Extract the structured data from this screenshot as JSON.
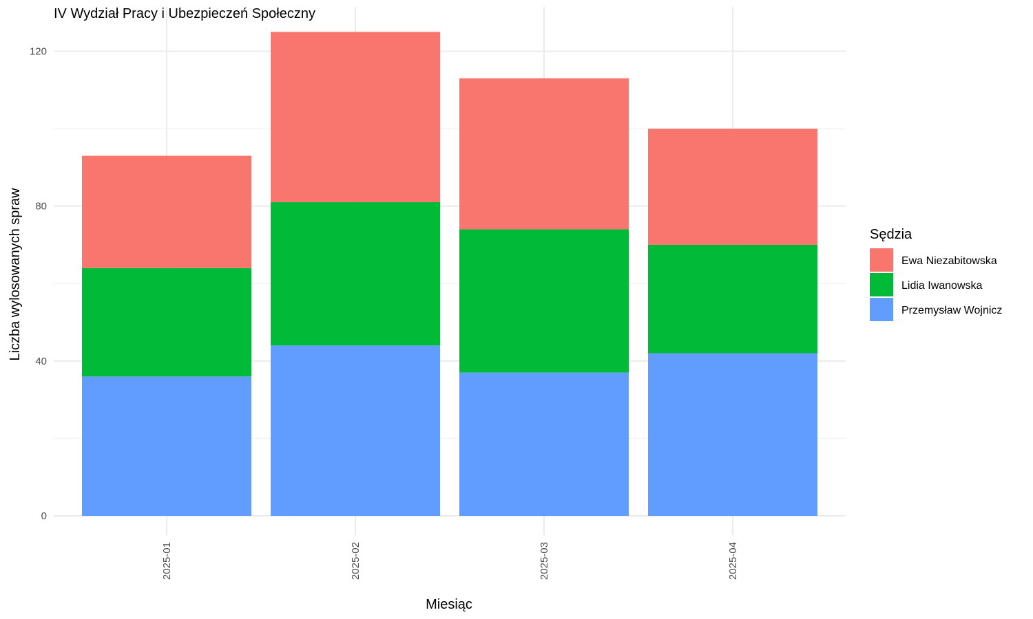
{
  "chart_data": {
    "type": "bar",
    "stacked": true,
    "title": "IV Wydział Pracy i Ubezpieczeń Społeczny",
    "xlabel": "Miesiąc",
    "ylabel": "Liczba wylosowanych spraw",
    "categories": [
      "2025-01",
      "2025-02",
      "2025-03",
      "2025-04"
    ],
    "series": [
      {
        "name": "Przemysław Wojnicz",
        "color": "#619CFF",
        "values": [
          36,
          44,
          37,
          42
        ]
      },
      {
        "name": "Lidia Iwanowska",
        "color": "#00BA38",
        "values": [
          28,
          37,
          37,
          28
        ]
      },
      {
        "name": "Ewa Niezabitowska",
        "color": "#F8766D",
        "values": [
          29,
          44,
          39,
          30
        ]
      }
    ],
    "ylim": [
      0,
      129
    ],
    "yticks": [
      0,
      40,
      80,
      120
    ],
    "grid": true,
    "legend": {
      "title": "Sędzia",
      "placement": "right",
      "order": [
        "Ewa Niezabitowska",
        "Lidia Iwanowska",
        "Przemysław Wojnicz"
      ]
    }
  }
}
